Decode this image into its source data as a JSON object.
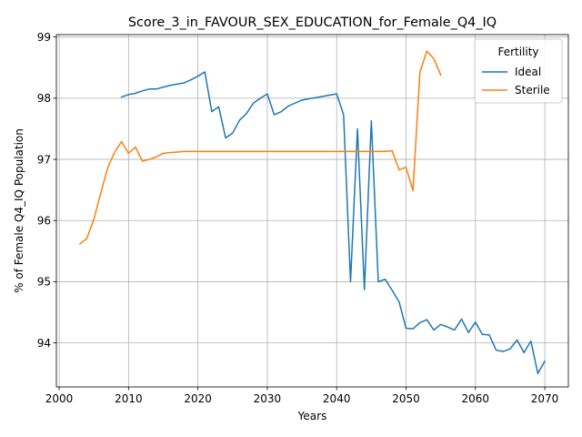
{
  "chart_data": {
    "type": "line",
    "title": "Score_3_in_FAVOUR_SEX_EDUCATION_for_Female_Q4_IQ",
    "xlabel": "Years",
    "ylabel": "% of Female Q4_IQ Population",
    "xlim": [
      1999.6,
      2073.4
    ],
    "ylim": [
      93.28,
      99.04
    ],
    "xticks": [
      2000,
      2010,
      2020,
      2030,
      2040,
      2050,
      2060,
      2070
    ],
    "yticks": [
      94,
      95,
      96,
      97,
      98,
      99
    ],
    "grid": true,
    "legend": {
      "title": "Fertility",
      "placement": "top-right"
    },
    "series": [
      {
        "name": "Ideal",
        "color": "#1f77b4",
        "x": [
          2009,
          2010,
          2011,
          2012,
          2013,
          2014,
          2015,
          2016,
          2017,
          2018,
          2019,
          2020,
          2021,
          2022,
          2023,
          2024,
          2025,
          2026,
          2027,
          2028,
          2029,
          2030,
          2031,
          2032,
          2033,
          2034,
          2035,
          2036,
          2037,
          2038,
          2039,
          2040,
          2041,
          2042,
          2043,
          2044,
          2045,
          2046,
          2047,
          2048,
          2049,
          2050,
          2051,
          2052,
          2053,
          2054,
          2055,
          2056,
          2057,
          2058,
          2059,
          2060,
          2061,
          2062,
          2063,
          2064,
          2065,
          2066,
          2067,
          2068,
          2069,
          2070
        ],
        "values": [
          98.02,
          98.06,
          98.08,
          98.12,
          98.15,
          98.15,
          98.18,
          98.21,
          98.23,
          98.25,
          98.3,
          98.36,
          98.43,
          97.78,
          97.86,
          97.35,
          97.43,
          97.64,
          97.75,
          97.92,
          98.0,
          98.07,
          97.73,
          97.78,
          97.87,
          97.92,
          97.97,
          97.99,
          98.01,
          98.03,
          98.05,
          98.07,
          97.73,
          95.0,
          97.5,
          94.87,
          97.63,
          95.0,
          95.04,
          94.86,
          94.67,
          94.24,
          94.23,
          94.33,
          94.38,
          94.21,
          94.3,
          94.26,
          94.21,
          94.39,
          94.17,
          94.34,
          94.14,
          94.13,
          93.88,
          93.86,
          93.9,
          94.05,
          93.84,
          94.03,
          93.5,
          93.7
        ]
      },
      {
        "name": "Sterile",
        "color": "#ff7f0e",
        "x": [
          2003,
          2004,
          2005,
          2006,
          2007,
          2008,
          2009,
          2010,
          2011,
          2012,
          2013,
          2014,
          2015,
          2016,
          2017,
          2018,
          2019,
          2020,
          2021,
          2022,
          2023,
          2024,
          2025,
          2026,
          2027,
          2028,
          2029,
          2030,
          2031,
          2032,
          2033,
          2034,
          2035,
          2036,
          2037,
          2038,
          2039,
          2040,
          2041,
          2042,
          2043,
          2044,
          2045,
          2046,
          2047,
          2048,
          2049,
          2050,
          2051,
          2052,
          2053,
          2054,
          2055
        ],
        "values": [
          95.62,
          95.71,
          96.02,
          96.45,
          96.86,
          97.12,
          97.29,
          97.1,
          97.2,
          96.97,
          97.0,
          97.04,
          97.1,
          97.11,
          97.12,
          97.13,
          97.13,
          97.13,
          97.13,
          97.13,
          97.13,
          97.13,
          97.13,
          97.13,
          97.13,
          97.13,
          97.13,
          97.13,
          97.13,
          97.13,
          97.13,
          97.13,
          97.13,
          97.13,
          97.13,
          97.13,
          97.13,
          97.13,
          97.13,
          97.13,
          97.13,
          97.13,
          97.13,
          97.13,
          97.13,
          97.14,
          96.83,
          96.87,
          96.49,
          98.42,
          98.77,
          98.65,
          98.38
        ]
      }
    ]
  }
}
